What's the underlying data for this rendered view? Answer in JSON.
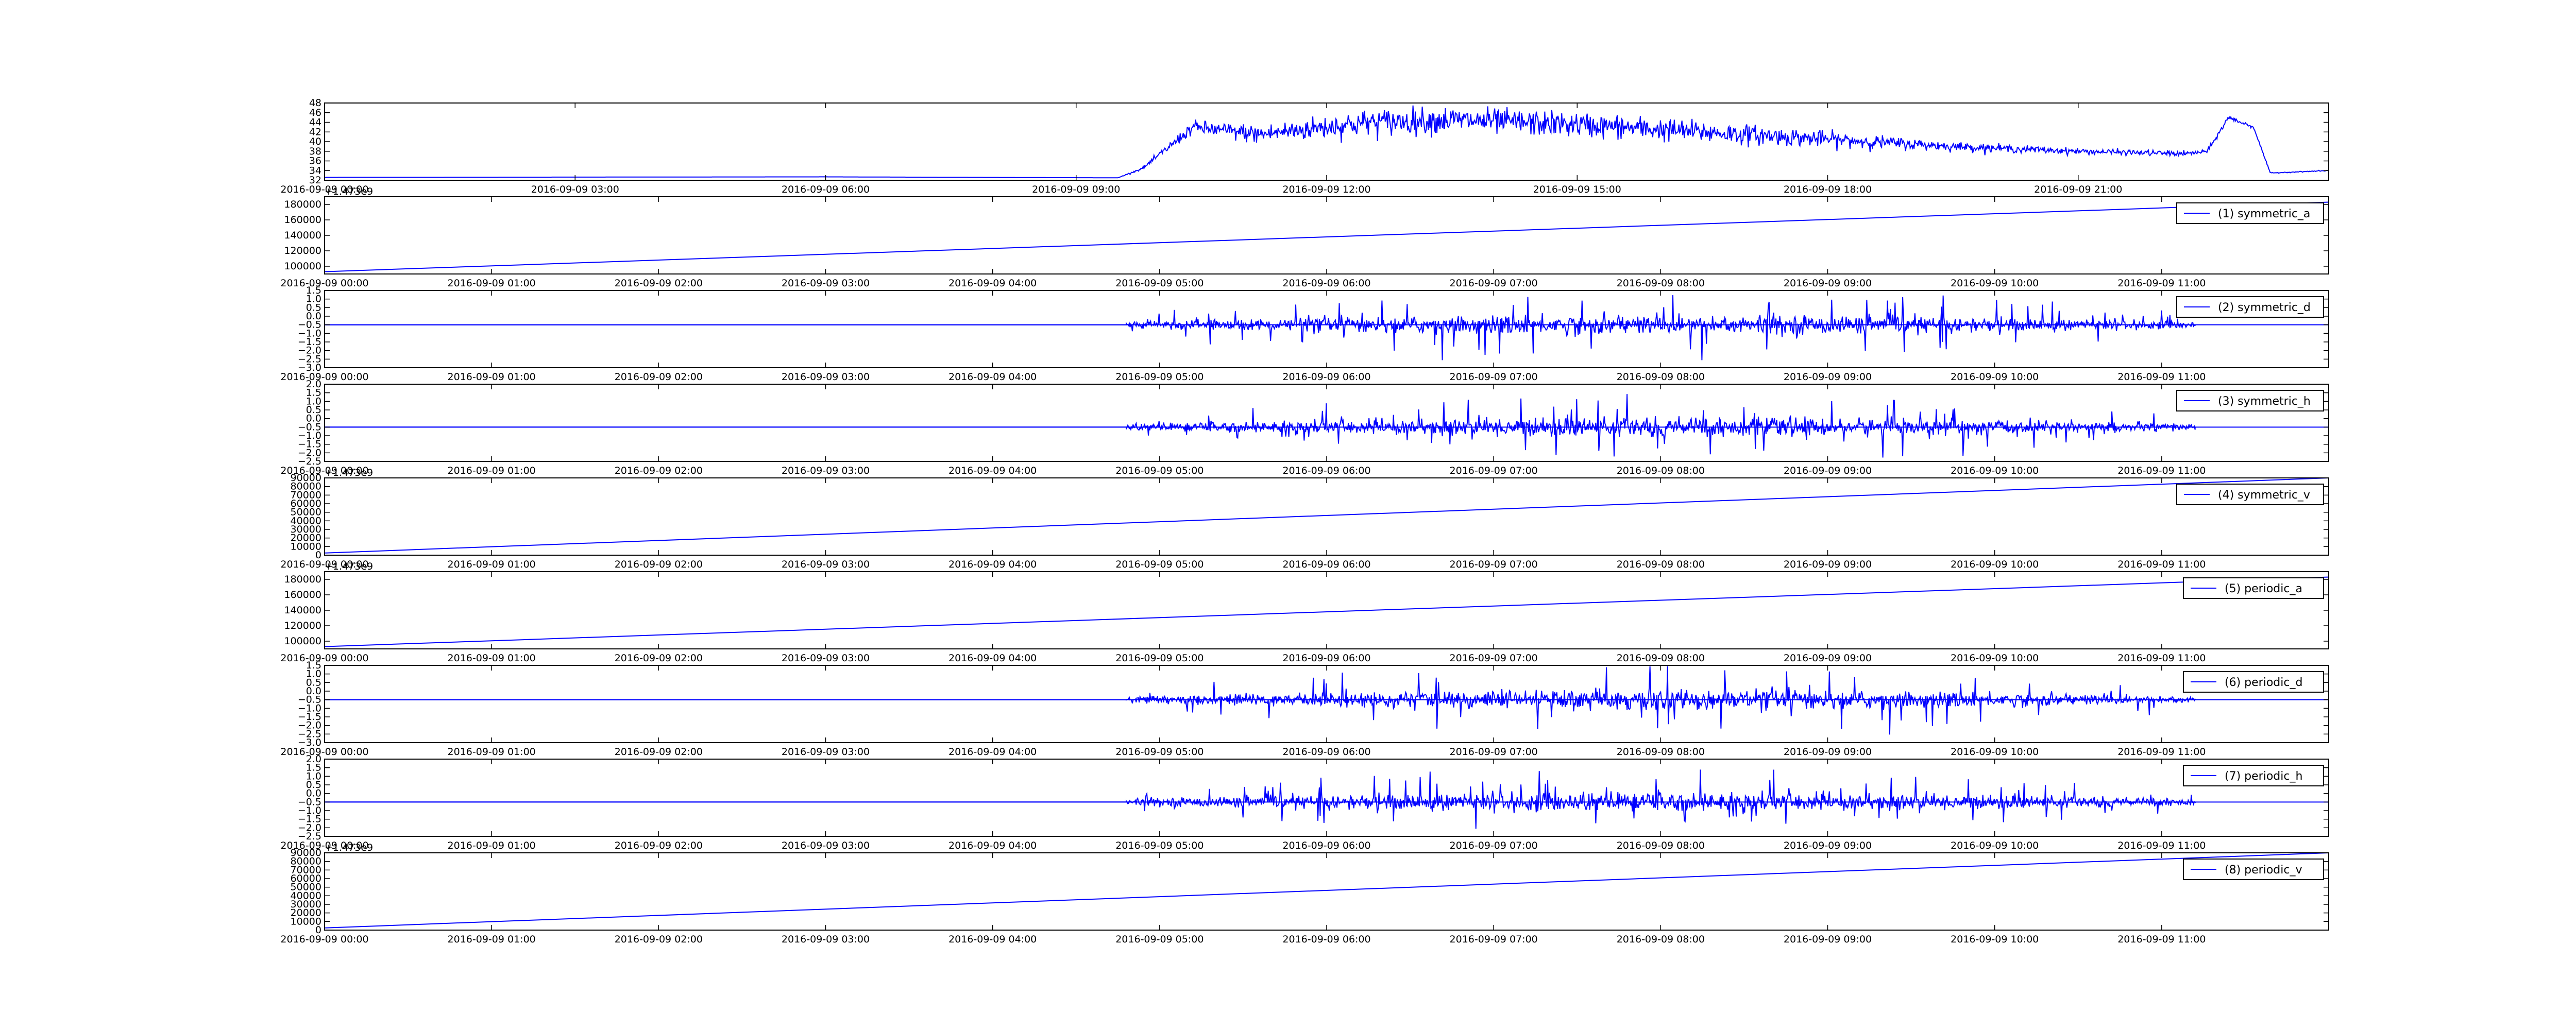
{
  "chart_data": [
    {
      "type": "line",
      "title": "",
      "legend": "",
      "offset_text": "",
      "color": "#0000ff",
      "ylim": [
        32,
        48
      ],
      "yticks": [
        "32",
        "34",
        "36",
        "38",
        "40",
        "42",
        "44",
        "46",
        "48"
      ],
      "xticks": [
        "2016-09-09 00:00",
        "2016-09-09 03:00",
        "2016-09-09 06:00",
        "2016-09-09 09:00",
        "2016-09-09 12:00",
        "2016-09-09 15:00",
        "2016-09-09 18:00",
        "2016-09-09 21:00"
      ],
      "xrange_hours": [
        0,
        24
      ],
      "series": [
        {
          "kind": "profile",
          "x": [
            0,
            6,
            9.5,
            9.8,
            10.4,
            11.2,
            12.5,
            13.5,
            15,
            16.5,
            18,
            19.5,
            21,
            22.3,
            22.55,
            22.8,
            23.1,
            23.3,
            24
          ],
          "y": [
            32.6,
            32.7,
            32.5,
            34.5,
            43,
            41.5,
            44,
            44.5,
            43.5,
            42,
            40.5,
            39,
            38,
            37.5,
            38,
            45,
            43,
            33.5,
            34
          ],
          "noise": [
            0,
            0,
            0,
            0.3,
            1.5,
            2.2,
            3,
            3,
            2.8,
            2.5,
            1.8,
            1,
            0.7,
            0.6,
            0.5,
            0.6,
            0.3,
            0.1,
            0.1
          ]
        }
      ]
    },
    {
      "type": "line",
      "title": "",
      "legend": "(1) symmetric_a",
      "legend_position": "upper right",
      "offset_text": "+1.473e9",
      "color": "#0000ff",
      "ylim": [
        90000,
        190000
      ],
      "yticks": [
        "100000",
        "120000",
        "140000",
        "160000",
        "180000"
      ],
      "ytick_values": [
        100000,
        120000,
        140000,
        160000,
        180000
      ],
      "xticks": [
        "2016-09-09 00:00",
        "2016-09-09 01:00",
        "2016-09-09 02:00",
        "2016-09-09 03:00",
        "2016-09-09 04:00",
        "2016-09-09 05:00",
        "2016-09-09 06:00",
        "2016-09-09 07:00",
        "2016-09-09 08:00",
        "2016-09-09 09:00",
        "2016-09-09 10:00",
        "2016-09-09 11:00"
      ],
      "xrange_hours": [
        0,
        12
      ],
      "series": [
        {
          "kind": "linear",
          "x": [
            0,
            12
          ],
          "y": [
            93000,
            183000
          ]
        }
      ]
    },
    {
      "type": "line",
      "title": "",
      "legend": "(2) symmetric_d",
      "legend_position": "upper right",
      "offset_text": "",
      "color": "#0000ff",
      "ylim": [
        -3.0,
        1.5
      ],
      "yticks": [
        "1.5",
        "1.0",
        "0.5",
        "0.0",
        "−0.5",
        "−1.0",
        "−1.5",
        "−2.0",
        "−2.5",
        "−3.0"
      ],
      "ytick_values": [
        1.5,
        1.0,
        0.5,
        0.0,
        -0.5,
        -1.0,
        -1.5,
        -2.0,
        -2.5,
        -3.0
      ],
      "xticks": [
        "2016-09-09 00:00",
        "2016-09-09 01:00",
        "2016-09-09 02:00",
        "2016-09-09 03:00",
        "2016-09-09 04:00",
        "2016-09-09 05:00",
        "2016-09-09 06:00",
        "2016-09-09 07:00",
        "2016-09-09 08:00",
        "2016-09-09 09:00",
        "2016-09-09 10:00",
        "2016-09-09 11:00"
      ],
      "xrange_hours": [
        0,
        12
      ],
      "series": [
        {
          "kind": "burst",
          "baseline": -0.5,
          "flat_until": 4.8,
          "burst_end": 11.2,
          "amp": 0.8,
          "extra": 1.4
        }
      ]
    },
    {
      "type": "line",
      "title": "",
      "legend": "(3) symmetric_h",
      "legend_position": "upper right",
      "offset_text": "",
      "color": "#0000ff",
      "ylim": [
        -2.5,
        2.0
      ],
      "yticks": [
        "2.0",
        "1.5",
        "1.0",
        "0.5",
        "0.0",
        "−0.5",
        "−1.0",
        "−1.5",
        "−2.0",
        "−2.5"
      ],
      "ytick_values": [
        2.0,
        1.5,
        1.0,
        0.5,
        0.0,
        -0.5,
        -1.0,
        -1.5,
        -2.0,
        -2.5
      ],
      "xticks": [
        "2016-09-09 00:00",
        "2016-09-09 01:00",
        "2016-09-09 02:00",
        "2016-09-09 03:00",
        "2016-09-09 04:00",
        "2016-09-09 05:00",
        "2016-09-09 06:00",
        "2016-09-09 07:00",
        "2016-09-09 08:00",
        "2016-09-09 09:00",
        "2016-09-09 10:00",
        "2016-09-09 11:00"
      ],
      "xrange_hours": [
        0,
        12
      ],
      "series": [
        {
          "kind": "burst",
          "baseline": -0.5,
          "flat_until": 4.8,
          "burst_end": 11.2,
          "amp": 0.8,
          "extra": 1.3
        }
      ]
    },
    {
      "type": "line",
      "title": "",
      "legend": "(4) symmetric_v",
      "legend_position": "upper right",
      "offset_text": "+1.473e9",
      "color": "#0000ff",
      "ylim": [
        0,
        90000
      ],
      "yticks": [
        "0",
        "10000",
        "20000",
        "30000",
        "40000",
        "50000",
        "60000",
        "70000",
        "80000",
        "90000"
      ],
      "ytick_values": [
        0,
        10000,
        20000,
        30000,
        40000,
        50000,
        60000,
        70000,
        80000,
        90000
      ],
      "xticks": [
        "2016-09-09 00:00",
        "2016-09-09 01:00",
        "2016-09-09 02:00",
        "2016-09-09 03:00",
        "2016-09-09 04:00",
        "2016-09-09 05:00",
        "2016-09-09 06:00",
        "2016-09-09 07:00",
        "2016-09-09 08:00",
        "2016-09-09 09:00",
        "2016-09-09 10:00",
        "2016-09-09 11:00"
      ],
      "xrange_hours": [
        0,
        12
      ],
      "series": [
        {
          "kind": "linear",
          "x": [
            0,
            12
          ],
          "y": [
            2500,
            90000
          ]
        }
      ]
    },
    {
      "type": "line",
      "title": "",
      "legend": "(5) periodic_a",
      "legend_position": "upper right",
      "offset_text": "+1.473e9",
      "color": "#0000ff",
      "ylim": [
        90000,
        190000
      ],
      "yticks": [
        "100000",
        "120000",
        "140000",
        "160000",
        "180000"
      ],
      "ytick_values": [
        100000,
        120000,
        140000,
        160000,
        180000
      ],
      "xticks": [
        "2016-09-09 00:00",
        "2016-09-09 01:00",
        "2016-09-09 02:00",
        "2016-09-09 03:00",
        "2016-09-09 04:00",
        "2016-09-09 05:00",
        "2016-09-09 06:00",
        "2016-09-09 07:00",
        "2016-09-09 08:00",
        "2016-09-09 09:00",
        "2016-09-09 10:00",
        "2016-09-09 11:00"
      ],
      "xrange_hours": [
        0,
        12
      ],
      "series": [
        {
          "kind": "linear",
          "x": [
            0,
            12
          ],
          "y": [
            93000,
            183000
          ]
        }
      ]
    },
    {
      "type": "line",
      "title": "",
      "legend": "(6) periodic_d",
      "legend_position": "upper right",
      "offset_text": "",
      "color": "#0000ff",
      "ylim": [
        -3.0,
        1.5
      ],
      "yticks": [
        "1.5",
        "1.0",
        "0.5",
        "0.0",
        "−0.5",
        "−1.0",
        "−1.5",
        "−2.0",
        "−2.5",
        "−3.0"
      ],
      "ytick_values": [
        1.5,
        1.0,
        0.5,
        0.0,
        -0.5,
        -1.0,
        -1.5,
        -2.0,
        -2.5,
        -3.0
      ],
      "xticks": [
        "2016-09-09 00:00",
        "2016-09-09 01:00",
        "2016-09-09 02:00",
        "2016-09-09 03:00",
        "2016-09-09 04:00",
        "2016-09-09 05:00",
        "2016-09-09 06:00",
        "2016-09-09 07:00",
        "2016-09-09 08:00",
        "2016-09-09 09:00",
        "2016-09-09 10:00",
        "2016-09-09 11:00"
      ],
      "xrange_hours": [
        0,
        12
      ],
      "series": [
        {
          "kind": "burst",
          "baseline": -0.5,
          "flat_until": 4.8,
          "burst_end": 11.2,
          "amp": 0.8,
          "extra": 1.4
        }
      ]
    },
    {
      "type": "line",
      "title": "",
      "legend": "(7) periodic_h",
      "legend_position": "upper right",
      "offset_text": "",
      "color": "#0000ff",
      "ylim": [
        -2.5,
        2.0
      ],
      "yticks": [
        "2.0",
        "1.5",
        "1.0",
        "0.5",
        "0.0",
        "−0.5",
        "−1.0",
        "−1.5",
        "−2.0",
        "−2.5"
      ],
      "ytick_values": [
        2.0,
        1.5,
        1.0,
        0.5,
        0.0,
        -0.5,
        -1.0,
        -1.5,
        -2.0,
        -2.5
      ],
      "xticks": [
        "2016-09-09 00:00",
        "2016-09-09 01:00",
        "2016-09-09 02:00",
        "2016-09-09 03:00",
        "2016-09-09 04:00",
        "2016-09-09 05:00",
        "2016-09-09 06:00",
        "2016-09-09 07:00",
        "2016-09-09 08:00",
        "2016-09-09 09:00",
        "2016-09-09 10:00",
        "2016-09-09 11:00"
      ],
      "xrange_hours": [
        0,
        12
      ],
      "series": [
        {
          "kind": "burst",
          "baseline": -0.5,
          "flat_until": 4.8,
          "burst_end": 11.2,
          "amp": 0.8,
          "extra": 1.3
        }
      ]
    },
    {
      "type": "line",
      "title": "",
      "legend": "(8) periodic_v",
      "legend_position": "upper right",
      "offset_text": "+1.473e9",
      "color": "#0000ff",
      "ylim": [
        0,
        90000
      ],
      "yticks": [
        "0",
        "10000",
        "20000",
        "30000",
        "40000",
        "50000",
        "60000",
        "70000",
        "80000",
        "90000"
      ],
      "ytick_values": [
        0,
        10000,
        20000,
        30000,
        40000,
        50000,
        60000,
        70000,
        80000,
        90000
      ],
      "xticks": [
        "2016-09-09 00:00",
        "2016-09-09 01:00",
        "2016-09-09 02:00",
        "2016-09-09 03:00",
        "2016-09-09 04:00",
        "2016-09-09 05:00",
        "2016-09-09 06:00",
        "2016-09-09 07:00",
        "2016-09-09 08:00",
        "2016-09-09 09:00",
        "2016-09-09 10:00",
        "2016-09-09 11:00"
      ],
      "xrange_hours": [
        0,
        12
      ],
      "series": [
        {
          "kind": "linear",
          "x": [
            0,
            12
          ],
          "y": [
            2500,
            90000
          ]
        }
      ]
    }
  ]
}
